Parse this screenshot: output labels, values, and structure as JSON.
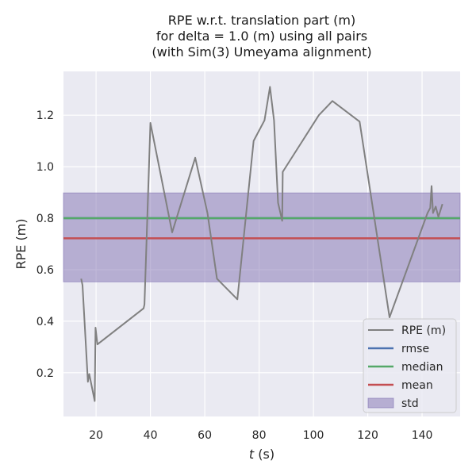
{
  "chart_data": {
    "type": "line",
    "title": [
      "RPE w.r.t. translation part (m)",
      "for delta = 1.0 (m) using all pairs",
      "(with Sim(3) Umeyama alignment)"
    ],
    "xlabel_italic": "t",
    "xlabel_rest": " (s)",
    "ylabel": "RPE (m)",
    "xlim": [
      8,
      154
    ],
    "ylim": [
      0.03,
      1.37
    ],
    "xticks": [
      20,
      40,
      60,
      80,
      100,
      120,
      140
    ],
    "yticks": [
      0.2,
      0.4,
      0.6,
      0.8,
      1.0,
      1.2
    ],
    "ytick_labels": [
      "0.2",
      "0.4",
      "0.6",
      "0.8",
      "1.0",
      "1.2"
    ],
    "grid": true,
    "legend_position": "lower-right",
    "colors": {
      "background": "#eaeaf2",
      "grid": "#ffffff",
      "rpe": "#808080",
      "rmse": "#4c72b0",
      "median": "#55a868",
      "mean": "#c44e52",
      "std": "#8172b2"
    },
    "series": [
      {
        "name": "RPE (m)",
        "x": [
          14.5,
          15.0,
          17.0,
          17.5,
          19.5,
          19.8,
          20.5,
          37.5,
          37.8,
          40.0,
          48.0,
          56.5,
          61.0,
          64.5,
          72.0,
          78.0,
          82.0,
          84.0,
          85.5,
          87.0,
          88.5,
          88.7,
          102.0,
          107.0,
          117.0,
          128.0,
          142.0,
          143.0,
          143.5,
          144.0,
          145.0,
          146.0,
          147.5
        ],
        "y": [
          0.565,
          0.54,
          0.165,
          0.195,
          0.09,
          0.375,
          0.31,
          0.45,
          0.465,
          1.17,
          0.745,
          1.035,
          0.82,
          0.565,
          0.485,
          1.1,
          1.18,
          1.31,
          1.18,
          0.86,
          0.79,
          0.98,
          1.2,
          1.255,
          1.175,
          0.415,
          0.82,
          0.84,
          0.925,
          0.82,
          0.845,
          0.805,
          0.855
        ]
      }
    ],
    "stats": {
      "rmse": 0.8,
      "median": 0.8,
      "mean": 0.722,
      "std_band": [
        0.553,
        0.898
      ]
    },
    "legend": [
      "RPE (m)",
      "rmse",
      "median",
      "mean",
      "std"
    ]
  }
}
